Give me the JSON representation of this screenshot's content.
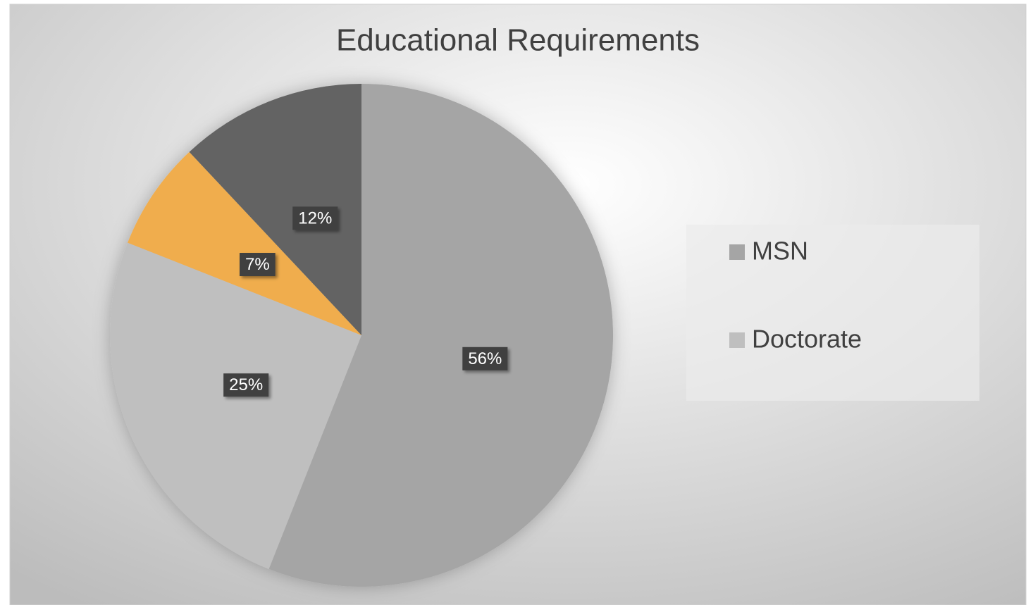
{
  "chart_data": {
    "type": "pie",
    "title": "Educational Requirements",
    "categories": [
      "MSN",
      "Doctorate",
      null,
      null
    ],
    "values": [
      56,
      25,
      7,
      12
    ],
    "value_labels": [
      "56%",
      "25%",
      "7%",
      "12%"
    ],
    "colors": [
      "#a5a5a5",
      "#bfbfbf",
      "#f0ad4e",
      "#636363"
    ],
    "legend": "right"
  }
}
